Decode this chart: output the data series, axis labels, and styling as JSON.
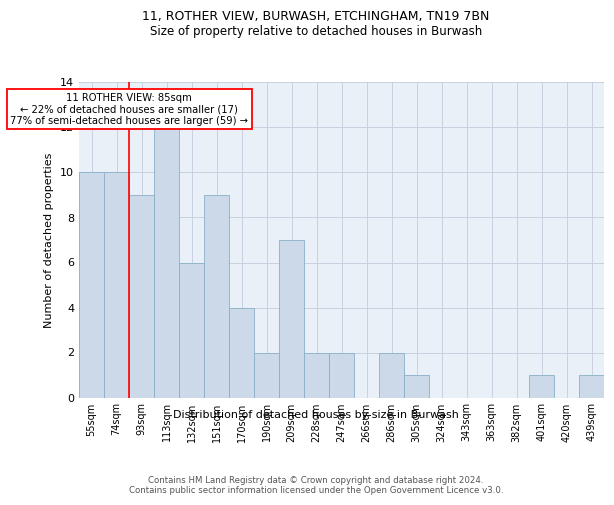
{
  "title1": "11, ROTHER VIEW, BURWASH, ETCHINGHAM, TN19 7BN",
  "title2": "Size of property relative to detached houses in Burwash",
  "xlabel": "Distribution of detached houses by size in Burwash",
  "ylabel": "Number of detached properties",
  "categories": [
    "55sqm",
    "74sqm",
    "93sqm",
    "113sqm",
    "132sqm",
    "151sqm",
    "170sqm",
    "190sqm",
    "209sqm",
    "228sqm",
    "247sqm",
    "266sqm",
    "286sqm",
    "305sqm",
    "324sqm",
    "343sqm",
    "363sqm",
    "382sqm",
    "401sqm",
    "420sqm",
    "439sqm"
  ],
  "values": [
    10,
    10,
    9,
    12,
    6,
    9,
    4,
    2,
    7,
    2,
    2,
    0,
    2,
    1,
    0,
    0,
    0,
    0,
    1,
    0,
    1
  ],
  "bar_color": "#ccd9e8",
  "bar_edge_color": "#8aafc8",
  "red_line_index": 1.5,
  "annotation_lines": [
    "11 ROTHER VIEW: 85sqm",
    "← 22% of detached houses are smaller (17)",
    "77% of semi-detached houses are larger (59) →"
  ],
  "ylim": [
    0,
    14
  ],
  "yticks": [
    0,
    2,
    4,
    6,
    8,
    10,
    12,
    14
  ],
  "footer": "Contains HM Land Registry data © Crown copyright and database right 2024.\nContains public sector information licensed under the Open Government Licence v3.0.",
  "plot_bg_color": "#eaf0f8"
}
